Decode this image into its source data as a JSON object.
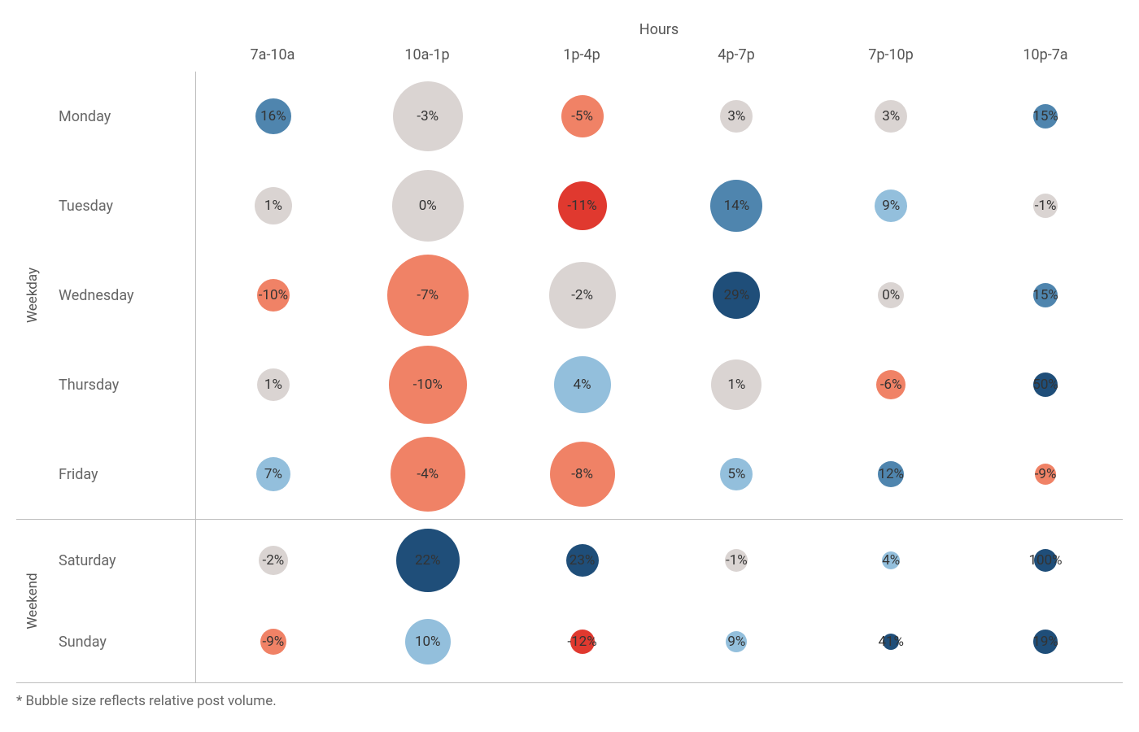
{
  "chart": {
    "type": "bubble-heatmap",
    "hours_title": "Hours",
    "footnote": "* Bubble size reflects relative post volume.",
    "background_color": "#ffffff",
    "gridline_color": "#bdbdbd",
    "text_color": "#555555",
    "label_fontsize": 18,
    "bubble_label_fontsize": 17,
    "columns": [
      "7a-10a",
      "10a-1p",
      "1p-4p",
      "4p-7p",
      "7p-10p",
      "10p-7a"
    ],
    "groups": [
      {
        "label": "Weekday",
        "days": [
          "Monday",
          "Tuesday",
          "Wednesday",
          "Thursday",
          "Friday"
        ]
      },
      {
        "label": "Weekend",
        "days": [
          "Saturday",
          "Sunday"
        ]
      }
    ],
    "colors": {
      "neutral": "#dad4d2",
      "light_red": "#f08266",
      "red": "#e0392f",
      "light_blue": "#93bfdc",
      "blue": "#4f85ae",
      "dark_blue": "#1f4e79"
    },
    "size_scale_note": "size is bubble diameter in px",
    "data": {
      "Monday": [
        {
          "v": "16%",
          "c": "blue",
          "s": 44
        },
        {
          "v": "-3%",
          "c": "neutral",
          "s": 86
        },
        {
          "v": "-5%",
          "c": "light_red",
          "s": 52
        },
        {
          "v": "3%",
          "c": "neutral",
          "s": 40
        },
        {
          "v": "3%",
          "c": "neutral",
          "s": 40
        },
        {
          "v": "15%",
          "c": "blue",
          "s": 30
        }
      ],
      "Tuesday": [
        {
          "v": "1%",
          "c": "neutral",
          "s": 46
        },
        {
          "v": "0%",
          "c": "neutral",
          "s": 88
        },
        {
          "v": "-11%",
          "c": "red",
          "s": 60
        },
        {
          "v": "14%",
          "c": "blue",
          "s": 64
        },
        {
          "v": "9%",
          "c": "light_blue",
          "s": 40
        },
        {
          "v": "-1%",
          "c": "neutral",
          "s": 30
        }
      ],
      "Wednesday": [
        {
          "v": "-10%",
          "c": "light_red",
          "s": 40
        },
        {
          "v": "-7%",
          "c": "light_red",
          "s": 100
        },
        {
          "v": "-2%",
          "c": "neutral",
          "s": 82
        },
        {
          "v": "29%",
          "c": "dark_blue",
          "s": 58
        },
        {
          "v": "0%",
          "c": "neutral",
          "s": 32
        },
        {
          "v": "15%",
          "c": "blue",
          "s": 30
        }
      ],
      "Thursday": [
        {
          "v": "1%",
          "c": "neutral",
          "s": 40
        },
        {
          "v": "-10%",
          "c": "light_red",
          "s": 96
        },
        {
          "v": "4%",
          "c": "light_blue",
          "s": 70
        },
        {
          "v": "1%",
          "c": "neutral",
          "s": 62
        },
        {
          "v": "-6%",
          "c": "light_red",
          "s": 36
        },
        {
          "v": "50%",
          "c": "dark_blue",
          "s": 30
        }
      ],
      "Friday": [
        {
          "v": "7%",
          "c": "light_blue",
          "s": 42
        },
        {
          "v": "-4%",
          "c": "light_red",
          "s": 92
        },
        {
          "v": "-8%",
          "c": "light_red",
          "s": 80
        },
        {
          "v": "5%",
          "c": "light_blue",
          "s": 40
        },
        {
          "v": "12%",
          "c": "blue",
          "s": 32
        },
        {
          "v": "-9%",
          "c": "light_red",
          "s": 26
        }
      ],
      "Saturday": [
        {
          "v": "-2%",
          "c": "neutral",
          "s": 36
        },
        {
          "v": "22%",
          "c": "dark_blue",
          "s": 78
        },
        {
          "v": "23%",
          "c": "dark_blue",
          "s": 40
        },
        {
          "v": "-1%",
          "c": "neutral",
          "s": 28
        },
        {
          "v": "4%",
          "c": "light_blue",
          "s": 22
        },
        {
          "v": "100%",
          "c": "dark_blue",
          "s": 28
        }
      ],
      "Sunday": [
        {
          "v": "-9%",
          "c": "light_red",
          "s": 32
        },
        {
          "v": "10%",
          "c": "light_blue",
          "s": 56
        },
        {
          "v": "-12%",
          "c": "red",
          "s": 30
        },
        {
          "v": "9%",
          "c": "light_blue",
          "s": 26
        },
        {
          "v": "41%",
          "c": "dark_blue",
          "s": 20
        },
        {
          "v": "19%",
          "c": "dark_blue",
          "s": 30
        }
      ]
    }
  }
}
